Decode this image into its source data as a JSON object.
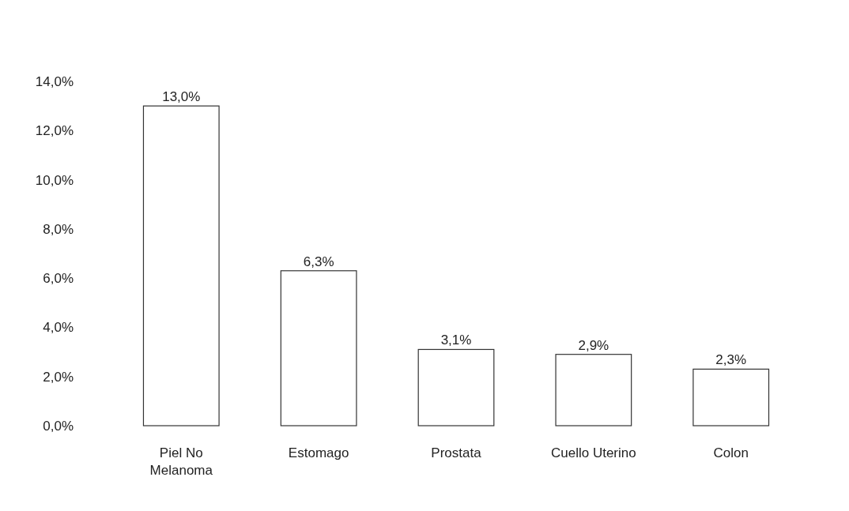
{
  "chart_data": {
    "type": "bar",
    "categories": [
      "Piel No Melanoma",
      "Estomago",
      "Prostata",
      "Cuello Uterino",
      "Colon"
    ],
    "values": [
      13.0,
      6.3,
      3.1,
      2.9,
      2.3
    ],
    "value_labels": [
      "13,0%",
      "6,3%",
      "3,1%",
      "2,9%",
      "2,3%"
    ],
    "color": "#ffffff",
    "ylim": [
      0,
      14
    ],
    "yticks": [
      {
        "value": 0,
        "label": "0,0%"
      },
      {
        "value": 2,
        "label": "2,0%"
      },
      {
        "value": 4,
        "label": "4,0%"
      },
      {
        "value": 6,
        "label": "6,0%"
      },
      {
        "value": 8,
        "label": "8,0%"
      },
      {
        "value": 10,
        "label": "10,0%"
      },
      {
        "value": 12,
        "label": "12,0%"
      },
      {
        "value": 14,
        "label": "14,0%"
      }
    ],
    "grid": false
  }
}
